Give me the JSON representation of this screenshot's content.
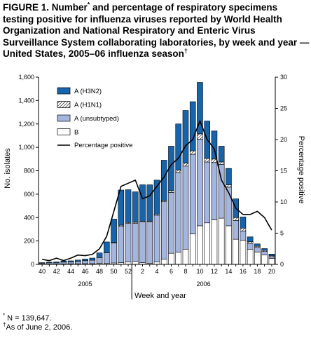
{
  "figure": {
    "title_main": "FIGURE 1. Number",
    "title_sup1": "*",
    "title_rest": " and percentage of respiratory specimens testing positive for influenza viruses reported by World Health Organization and National Respiratory and Enteric Virus Surveillance System collaborating laboratories, by week and year — United States, 2005–06 influenza season",
    "title_sup2": "†",
    "footnote1_mark": "*",
    "footnote1_text": " N = 139,647.",
    "footnote2_mark": "†",
    "footnote2_text": "As of June 2, 2006."
  },
  "colors": {
    "h3n2": "#1764ab",
    "h1n1": "#ffffff",
    "unsubtyped": "#a4b6df",
    "b": "#ffffff",
    "line": "#000000"
  },
  "chart_data": {
    "type": "bar",
    "stacked": true,
    "xlabel": "Week and year",
    "ylabel": "No. isolates",
    "y2label": "Percentage positive",
    "ylim": [
      0,
      1600
    ],
    "y2lim": [
      0,
      30
    ],
    "yticks": [
      "0",
      "200",
      "400",
      "600",
      "800",
      "1,000",
      "1,200",
      "1,400",
      "1,600"
    ],
    "y2ticks": [
      "0",
      "5",
      "10",
      "15",
      "20",
      "25",
      "30"
    ],
    "xticks": [
      "40",
      "42",
      "44",
      "46",
      "48",
      "50",
      "52",
      "2",
      "4",
      "6",
      "8",
      "10",
      "12",
      "14",
      "16",
      "18",
      "20"
    ],
    "year_labels": [
      "2005",
      "2006"
    ],
    "weeks": [
      40,
      41,
      42,
      43,
      44,
      45,
      46,
      47,
      48,
      49,
      50,
      51,
      52,
      1,
      2,
      3,
      4,
      5,
      6,
      7,
      8,
      9,
      10,
      11,
      12,
      13,
      14,
      15,
      16,
      17,
      18,
      19,
      20
    ],
    "series": [
      {
        "name": "B",
        "values": [
          2,
          3,
          3,
          4,
          5,
          5,
          6,
          6,
          8,
          10,
          12,
          15,
          20,
          25,
          15,
          10,
          20,
          45,
          95,
          105,
          130,
          260,
          330,
          355,
          380,
          395,
          330,
          215,
          205,
          130,
          105,
          80,
          50
        ]
      },
      {
        "name": "A (unsubtyped)",
        "values": [
          8,
          10,
          10,
          15,
          15,
          20,
          25,
          30,
          50,
          90,
          170,
          310,
          330,
          325,
          350,
          355,
          400,
          490,
          520,
          680,
          710,
          680,
          740,
          520,
          490,
          460,
          330,
          160,
          80,
          50,
          40,
          30,
          15
        ]
      },
      {
        "name": "A (H1N1)",
        "values": [
          0,
          0,
          0,
          0,
          0,
          0,
          0,
          0,
          0,
          2,
          5,
          10,
          8,
          10,
          5,
          5,
          10,
          10,
          15,
          20,
          25,
          30,
          45,
          30,
          30,
          20,
          20,
          25,
          25,
          15,
          10,
          10,
          8
        ]
      },
      {
        "name": "A (H3N2)",
        "values": [
          5,
          6,
          8,
          10,
          10,
          12,
          15,
          18,
          40,
          90,
          200,
          300,
          280,
          260,
          310,
          310,
          290,
          345,
          380,
          395,
          450,
          420,
          440,
          320,
          240,
          135,
          140,
          160,
          95,
          40,
          20,
          15,
          15
        ]
      }
    ],
    "line": {
      "name": "Percentage positive",
      "values": [
        0.8,
        0.6,
        1.0,
        0.6,
        1.0,
        1.5,
        1.4,
        1.6,
        2.5,
        4.5,
        8.5,
        12.5,
        13.0,
        13.5,
        10.5,
        11.0,
        12.5,
        14.0,
        16.0,
        17.0,
        19.0,
        20.0,
        23.0,
        20.0,
        18.5,
        13.5,
        11.5,
        9.0,
        8.0,
        8.0,
        8.5,
        7.5,
        5.5
      ]
    },
    "legend_position": "top-left",
    "grid": false
  }
}
